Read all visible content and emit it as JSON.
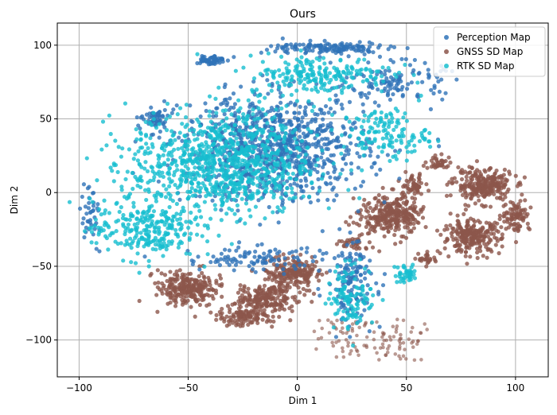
{
  "chart_data": {
    "type": "scatter",
    "title": "Ours",
    "xlabel": "Dim 1",
    "ylabel": "Dim 2",
    "xlim": [
      -110,
      115
    ],
    "ylim": [
      -125,
      115
    ],
    "xticks": [
      -100,
      -50,
      0,
      50,
      100
    ],
    "yticks": [
      -100,
      -50,
      0,
      50,
      100
    ],
    "xtick_labels": [
      "−100",
      "−50",
      "0",
      "50",
      "100"
    ],
    "ytick_labels": [
      "−100",
      "−50",
      "0",
      "50",
      "100"
    ],
    "grid": true,
    "legend_position": "top-right",
    "series": [
      {
        "name": "Perception Map",
        "color": "#2f73b8"
      },
      {
        "name": "GNSS SD Map",
        "color": "#8c564b"
      },
      {
        "name": "RTK SD Map",
        "color": "#17becf"
      }
    ],
    "clusters": [
      {
        "series": 0,
        "center": [
          -10,
          30
        ],
        "spread": [
          38,
          32
        ],
        "count": 900
      },
      {
        "series": 0,
        "center": [
          -40,
          90
        ],
        "spread": [
          6,
          3
        ],
        "count": 60
      },
      {
        "series": 0,
        "center": [
          15,
          98
        ],
        "spread": [
          25,
          4
        ],
        "count": 140
      },
      {
        "series": 0,
        "center": [
          45,
          75
        ],
        "spread": [
          20,
          12
        ],
        "count": 120
      },
      {
        "series": 0,
        "center": [
          -65,
          50
        ],
        "spread": [
          5,
          8
        ],
        "count": 50
      },
      {
        "series": 0,
        "center": [
          -20,
          -45
        ],
        "spread": [
          30,
          8
        ],
        "count": 100
      },
      {
        "series": 0,
        "center": [
          25,
          -60
        ],
        "spread": [
          10,
          25
        ],
        "count": 140
      },
      {
        "series": 0,
        "center": [
          -95,
          -15
        ],
        "spread": [
          5,
          20
        ],
        "count": 40
      },
      {
        "series": 2,
        "center": [
          -35,
          20
        ],
        "spread": [
          38,
          32
        ],
        "count": 900
      },
      {
        "series": 2,
        "center": [
          10,
          80
        ],
        "spread": [
          30,
          12
        ],
        "count": 220
      },
      {
        "series": 2,
        "center": [
          40,
          40
        ],
        "spread": [
          18,
          15
        ],
        "count": 140
      },
      {
        "series": 2,
        "center": [
          -70,
          -25
        ],
        "spread": [
          22,
          18
        ],
        "count": 260
      },
      {
        "series": 2,
        "center": [
          25,
          -70
        ],
        "spread": [
          10,
          20
        ],
        "count": 110
      },
      {
        "series": 2,
        "center": [
          50,
          -55
        ],
        "spread": [
          5,
          6
        ],
        "count": 40
      },
      {
        "series": 1,
        "center": [
          -50,
          -65
        ],
        "spread": [
          12,
          10
        ],
        "count": 260
      },
      {
        "series": 1,
        "center": [
          -15,
          -72
        ],
        "spread": [
          12,
          10
        ],
        "count": 220
      },
      {
        "series": 1,
        "center": [
          -2,
          -55
        ],
        "spread": [
          12,
          10
        ],
        "count": 200
      },
      {
        "series": 1,
        "center": [
          -25,
          -85
        ],
        "spread": [
          12,
          5
        ],
        "count": 100
      },
      {
        "series": 1,
        "center": [
          43,
          -15
        ],
        "spread": [
          12,
          12
        ],
        "count": 320
      },
      {
        "series": 1,
        "center": [
          53,
          5
        ],
        "spread": [
          5,
          6
        ],
        "count": 50
      },
      {
        "series": 1,
        "center": [
          85,
          5
        ],
        "spread": [
          12,
          10
        ],
        "count": 260
      },
      {
        "series": 1,
        "center": [
          80,
          -30
        ],
        "spread": [
          12,
          10
        ],
        "count": 240
      },
      {
        "series": 1,
        "center": [
          100,
          -15
        ],
        "spread": [
          6,
          10
        ],
        "count": 90
      },
      {
        "series": 1,
        "center": [
          65,
          20
        ],
        "spread": [
          6,
          4
        ],
        "count": 40
      },
      {
        "series": 1,
        "center": [
          60,
          -45
        ],
        "spread": [
          4,
          4
        ],
        "count": 30
      },
      {
        "series": 1,
        "center": [
          25,
          -35
        ],
        "spread": [
          8,
          4
        ],
        "count": 30
      }
    ],
    "grid_patch": {
      "series": 1,
      "center": [
        32,
        -100
      ],
      "size": [
        30,
        14
      ],
      "count": 110,
      "alpha": 0.6
    }
  }
}
